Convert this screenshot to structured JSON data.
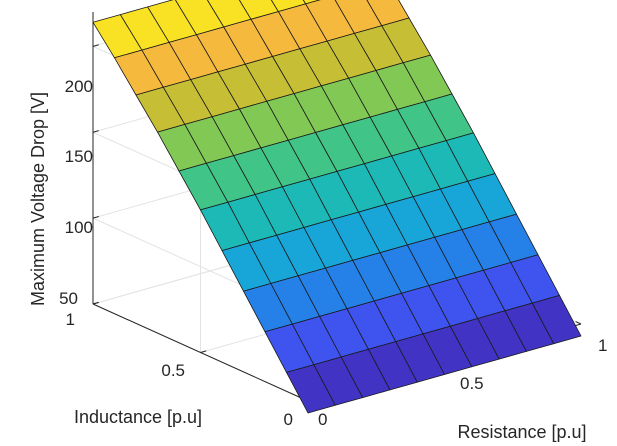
{
  "chart_data": {
    "type": "surface",
    "title": "",
    "xlabel": "Resistance [p.u]",
    "ylabel": "Inductance [p.u]",
    "zlabel": "Maximum Voltage Drop [V]",
    "xlim": [
      0,
      1
    ],
    "ylim": [
      0,
      1
    ],
    "zlim": [
      50,
      220
    ],
    "xticks": [
      "0",
      "0.5",
      "1"
    ],
    "yticks": [
      "0",
      "0.5",
      "1"
    ],
    "zticks": [
      "50",
      "100",
      "150",
      "200"
    ],
    "grid": true,
    "colormap": "parula",
    "x": [
      0,
      0.1,
      0.2,
      0.3,
      0.4,
      0.5,
      0.6,
      0.7,
      0.8,
      0.9,
      1.0
    ],
    "y": [
      0,
      0.1,
      0.2,
      0.3,
      0.4,
      0.5,
      0.6,
      0.7,
      0.8,
      0.9,
      1.0
    ],
    "z_by_inductance": [
      43,
      61,
      79,
      97,
      115,
      133,
      150,
      167,
      183,
      199,
      214
    ],
    "z_dependence_on_resistance": "approximately constant"
  }
}
